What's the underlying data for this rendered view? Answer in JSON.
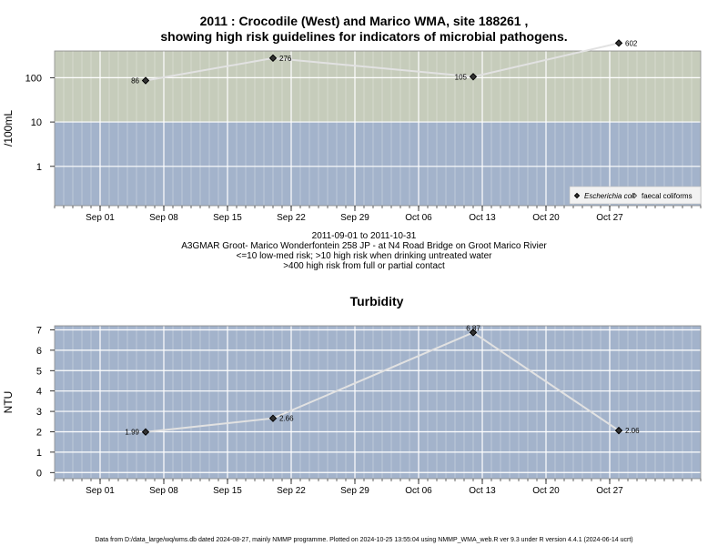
{
  "chart_data": [
    {
      "type": "line",
      "title": "2011 : Crocodile (West) and Marico WMA, site 188261 ,",
      "title_line2": "showing high risk guidelines for indicators of microbial pathogens.",
      "ylabel": "/100mL",
      "yscale": "log",
      "ylim": [
        0.13,
        400
      ],
      "y_ticks": [
        1,
        10,
        100
      ],
      "y_tick_labels": [
        "1",
        "10",
        "100"
      ],
      "x_range": [
        "2011-08-27",
        "2011-11-06"
      ],
      "x_ticks": [
        "2011-09-01",
        "2011-09-08",
        "2011-09-15",
        "2011-09-22",
        "2011-09-29",
        "2011-10-06",
        "2011-10-13",
        "2011-10-20",
        "2011-10-27"
      ],
      "x_tick_labels": [
        "Sep 01",
        "Sep 08",
        "Sep 15",
        "Sep 22",
        "Sep 29",
        "Oct 06",
        "Oct 13",
        "Oct 20",
        "Oct 27"
      ],
      "grid": true,
      "bands": [
        {
          "from": 0.13,
          "to": 10,
          "color": "#a3b3cb"
        },
        {
          "from": 10,
          "to": 400,
          "color": "#c6ccbb"
        },
        {
          "from": 400,
          "to": 700,
          "color": "#fdfbc6"
        }
      ],
      "series": [
        {
          "name": "Escherichia coli",
          "marker": "diamond",
          "x": [
            "2011-09-06",
            "2011-09-20",
            "2011-10-12",
            "2011-10-28"
          ],
          "y": [
            86,
            276,
            105,
            602
          ],
          "labels": [
            "86",
            "276",
            "105",
            "602"
          ],
          "label_side": [
            "left",
            "right",
            "left",
            "right"
          ]
        }
      ],
      "legend": {
        "position": "bottom-right",
        "entries": [
          {
            "label": "Escherichia coli",
            "marker": "diamond",
            "italic": true
          },
          {
            "label": "faecal coliforms",
            "marker": "open-diamond",
            "italic": false
          }
        ]
      },
      "caption": [
        "2011-09-01 to 2011-10-31",
        "A3GMAR Groot- Marico Wonderfontein 258 JP - at N4 Road Bridge on Groot Marico Rivier",
        "<=10 low-med risk; >10 high risk when drinking untreated water",
        ">400 high risk from full or partial contact"
      ]
    },
    {
      "type": "line",
      "title": "Turbidity",
      "ylabel": "NTU",
      "ylim": [
        -0.3,
        7.2
      ],
      "y_ticks": [
        0,
        1,
        2,
        3,
        4,
        5,
        6,
        7
      ],
      "y_tick_labels": [
        "0",
        "1",
        "2",
        "3",
        "4",
        "5",
        "6",
        "7"
      ],
      "x_range": [
        "2011-08-27",
        "2011-11-06"
      ],
      "x_ticks": [
        "2011-09-01",
        "2011-09-08",
        "2011-09-15",
        "2011-09-22",
        "2011-09-29",
        "2011-10-06",
        "2011-10-13",
        "2011-10-20",
        "2011-10-27"
      ],
      "x_tick_labels": [
        "Sep 01",
        "Sep 08",
        "Sep 15",
        "Sep 22",
        "Sep 29",
        "Oct 06",
        "Oct 13",
        "Oct 20",
        "Oct 27"
      ],
      "grid": true,
      "background": "#a3b3cb",
      "series": [
        {
          "marker": "diamond",
          "x": [
            "2011-09-06",
            "2011-09-20",
            "2011-10-12",
            "2011-10-28"
          ],
          "y": [
            1.99,
            2.66,
            6.87,
            2.06
          ],
          "labels": [
            "1.99",
            "2.66",
            "6.87",
            "2.06"
          ],
          "label_side": [
            "left",
            "right",
            "above",
            "right"
          ]
        }
      ]
    }
  ],
  "footer": "Data from D:/data_large/wq/wms.db dated 2024-08-27, mainly NMMP programme. Plotted on 2024-10-25 13:55:04 using NMMP_WMA_web.R ver 9.3 under R version 4.4.1 (2024-06-14 ucrt)"
}
